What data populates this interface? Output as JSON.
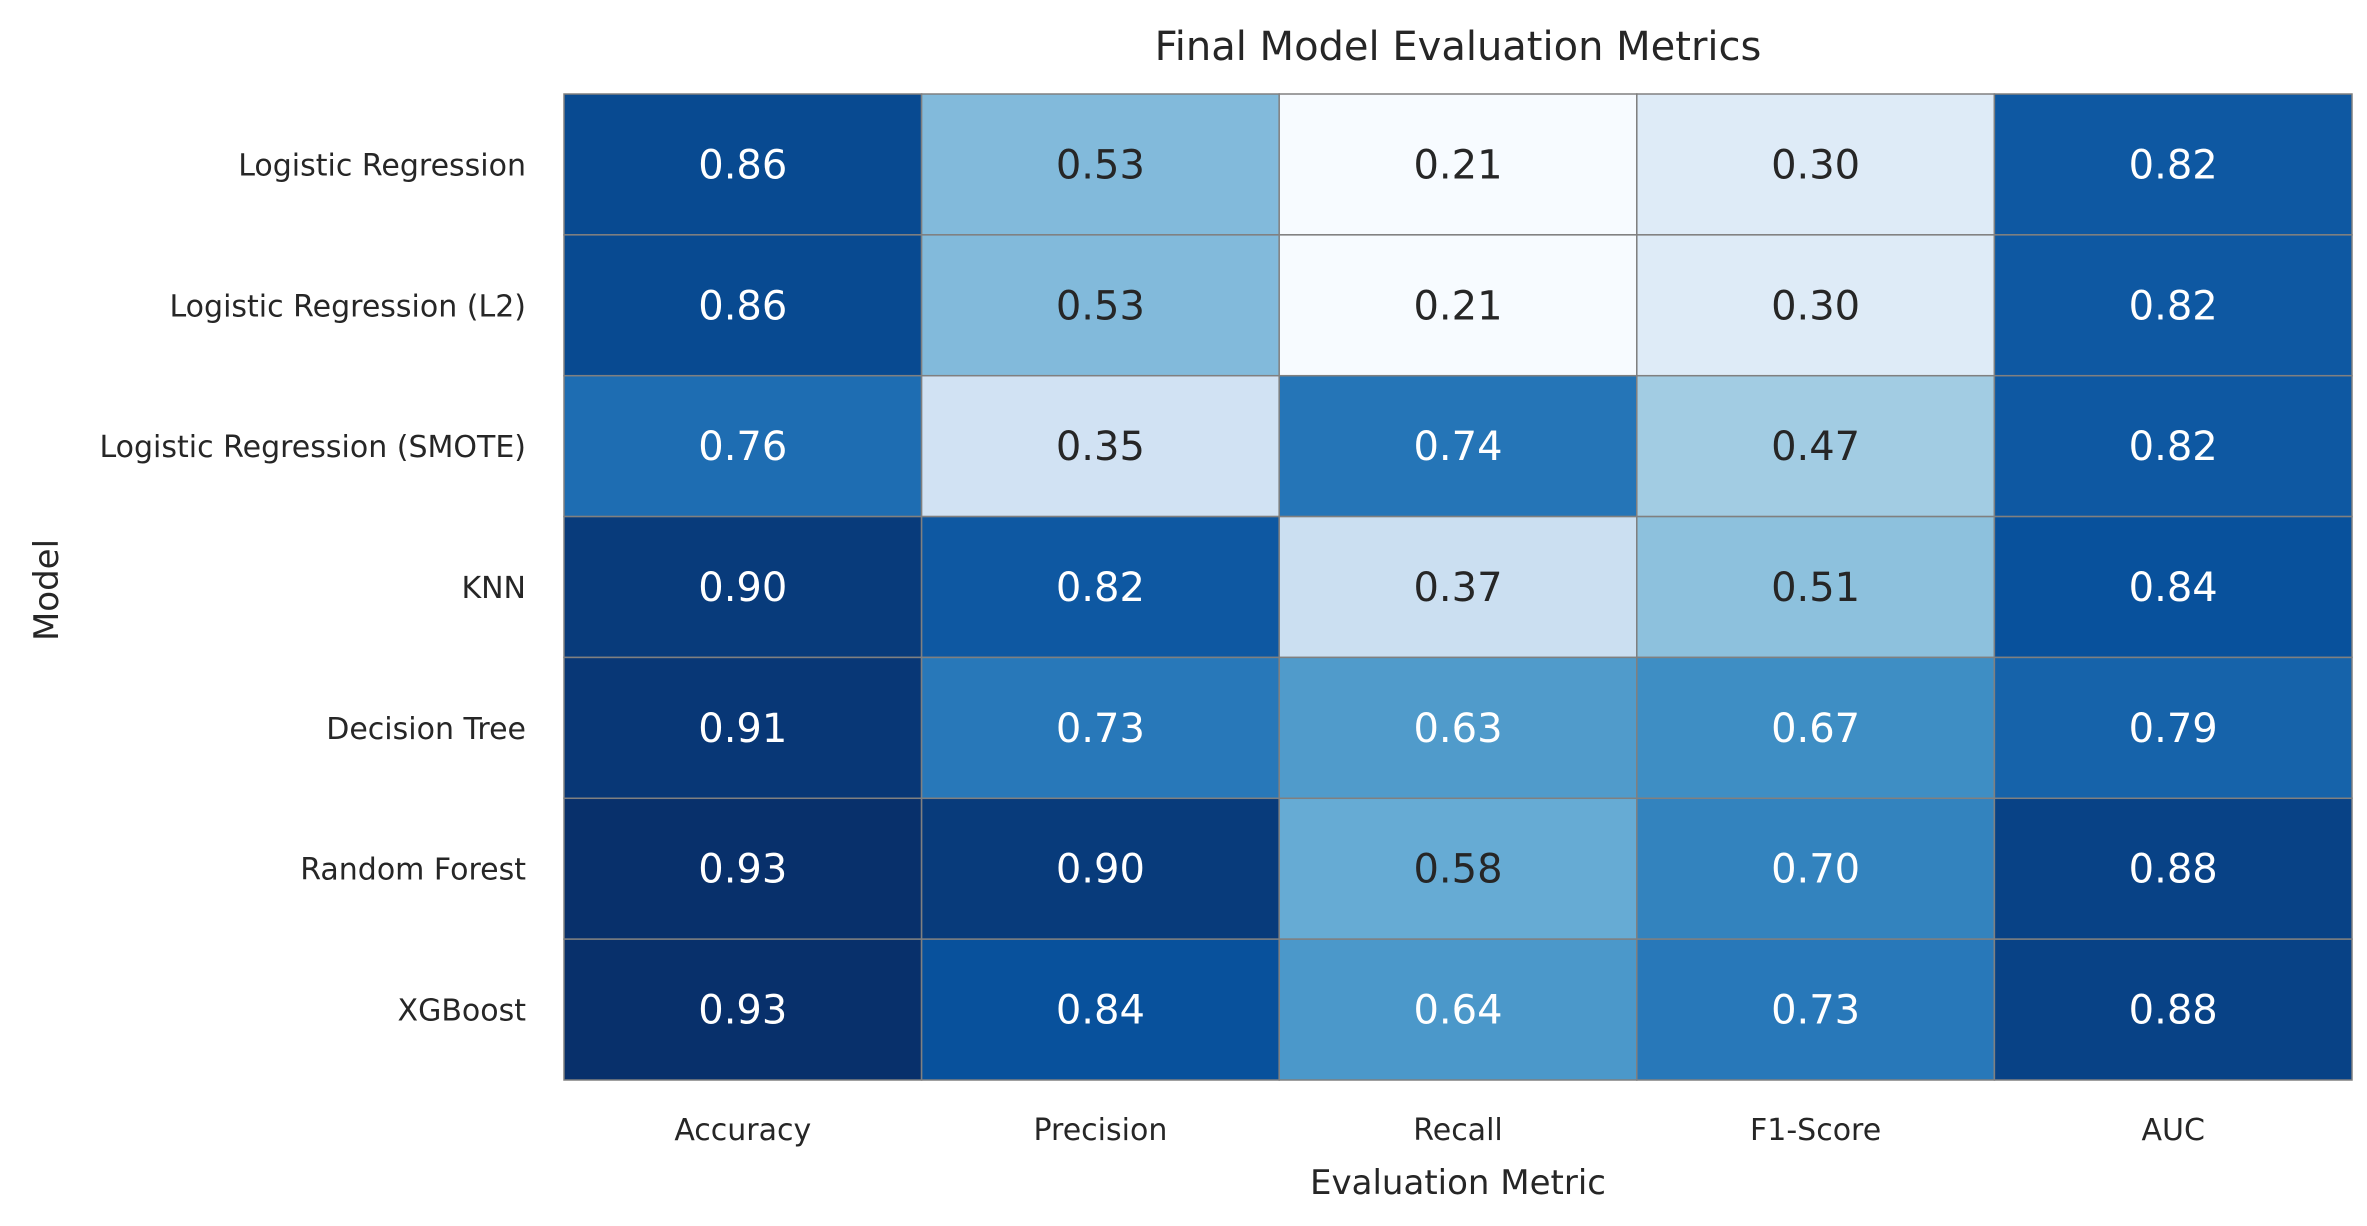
{
  "chart_data": {
    "type": "heatmap",
    "title": "Final Model Evaluation Metrics",
    "xlabel": "Evaluation Metric",
    "ylabel": "Model",
    "x_categories": [
      "Accuracy",
      "Precision",
      "Recall",
      "F1-Score",
      "AUC"
    ],
    "y_categories": [
      "Logistic Regression",
      "Logistic Regression (L2)",
      "Logistic Regression (SMOTE)",
      "KNN",
      "Decision Tree",
      "Random Forest",
      "XGBoost"
    ],
    "values": [
      [
        0.86,
        0.53,
        0.21,
        0.3,
        0.82
      ],
      [
        0.86,
        0.53,
        0.21,
        0.3,
        0.82
      ],
      [
        0.76,
        0.35,
        0.74,
        0.47,
        0.82
      ],
      [
        0.9,
        0.82,
        0.37,
        0.51,
        0.84
      ],
      [
        0.91,
        0.73,
        0.63,
        0.67,
        0.79
      ],
      [
        0.93,
        0.9,
        0.58,
        0.7,
        0.88
      ],
      [
        0.93,
        0.84,
        0.64,
        0.73,
        0.88
      ]
    ],
    "value_format": "0.00",
    "colormap": "Blues",
    "vmin": 0.21,
    "vmax": 0.93,
    "cell_border_color": "#808080",
    "colorbar": false,
    "grid": false
  }
}
